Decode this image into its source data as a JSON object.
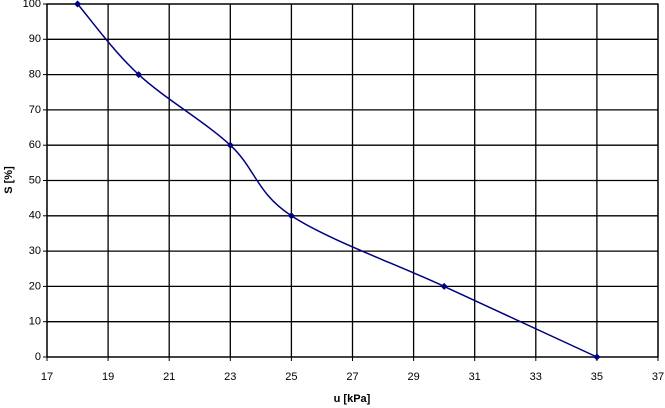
{
  "chart_data": {
    "type": "line",
    "x_label": "u [kPa]",
    "y_label": "S [%]",
    "x": [
      18,
      20,
      23,
      25,
      30,
      35
    ],
    "series": [
      {
        "color": "#000080",
        "values": [
          100,
          80,
          60,
          40,
          20,
          0
        ]
      }
    ],
    "xlim": [
      17,
      37
    ],
    "xticks": [
      17,
      19,
      21,
      23,
      25,
      27,
      29,
      31,
      33,
      35,
      37
    ],
    "ylim": [
      0,
      100
    ],
    "yticks": [
      0,
      10,
      20,
      30,
      40,
      50,
      60,
      70,
      80,
      90,
      100
    ],
    "grid": true,
    "smooth": true,
    "markers": true
  }
}
